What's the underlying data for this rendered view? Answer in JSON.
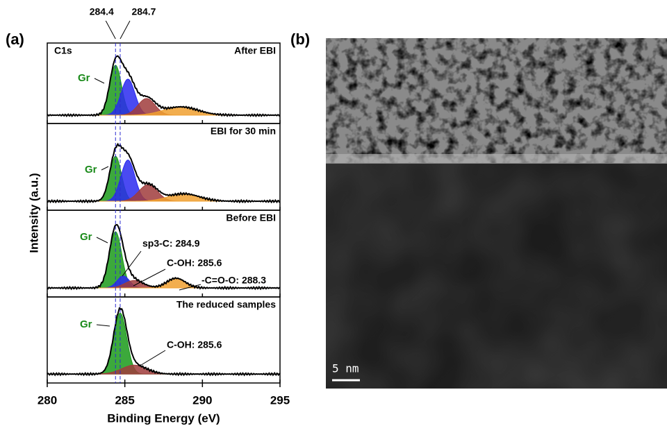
{
  "chart_data": {
    "type": "xps-stack",
    "panel_label": "(a)",
    "xlabel": "Binding Energy (eV)",
    "ylabel": "Intensity (a.u.)",
    "xlim": [
      280,
      295
    ],
    "xticks": [
      280,
      285,
      290,
      295
    ],
    "reference_lines": [
      284.4,
      284.7
    ],
    "spectrum_name": "C1s",
    "panels": [
      {
        "title": "After EBI",
        "peak_label": "Gr",
        "ylim": [
          -0.12,
          1
        ],
        "components": [
          {
            "color": "#1a9a1a",
            "center": 284.4,
            "height": 0.72,
            "width": 0.38
          },
          {
            "color": "#2a2af0",
            "center": 285.2,
            "height": 0.52,
            "width": 0.45
          },
          {
            "color": "#a03c3c",
            "center": 286.4,
            "height": 0.24,
            "width": 0.55
          },
          {
            "color": "#f0a030",
            "center": 288.6,
            "height": 0.12,
            "width": 1.1
          }
        ],
        "annotations": []
      },
      {
        "title": "EBI for 30 min",
        "peak_label": "Gr",
        "ylim": [
          -0.12,
          1
        ],
        "components": [
          {
            "color": "#1a9a1a",
            "center": 284.4,
            "height": 0.6,
            "width": 0.38
          },
          {
            "color": "#2a2af0",
            "center": 285.2,
            "height": 0.55,
            "width": 0.45
          },
          {
            "color": "#a03c3c",
            "center": 286.5,
            "height": 0.22,
            "width": 0.6
          },
          {
            "color": "#f0a030",
            "center": 288.8,
            "height": 0.1,
            "width": 1.0
          }
        ],
        "annotations": []
      },
      {
        "title": "Before EBI",
        "peak_label": "Gr",
        "ylim": [
          -0.12,
          1
        ],
        "components": [
          {
            "color": "#1a9a1a",
            "center": 284.4,
            "height": 0.75,
            "width": 0.4
          },
          {
            "color": "#2a2af0",
            "center": 284.9,
            "height": 0.16,
            "width": 0.4
          },
          {
            "color": "#a03c3c",
            "center": 285.6,
            "height": 0.1,
            "width": 0.6
          },
          {
            "color": "#f0a030",
            "center": 288.3,
            "height": 0.13,
            "width": 0.6
          }
        ],
        "annotations": [
          "sp3-C: 284.9",
          "C-OH: 285.6",
          "-C=O-O: 288.3"
        ]
      },
      {
        "title": "The reduced samples",
        "peak_label": "Gr",
        "ylim": [
          -0.12,
          1
        ],
        "components": [
          {
            "color": "#1a9a1a",
            "center": 284.7,
            "height": 0.82,
            "width": 0.42
          },
          {
            "color": "#a03c3c",
            "center": 285.6,
            "height": 0.12,
            "width": 0.8
          }
        ],
        "annotations": [
          "C-OH: 285.6"
        ]
      }
    ]
  },
  "image": {
    "panel_label": "(b)",
    "scale_bar": "5 nm"
  }
}
